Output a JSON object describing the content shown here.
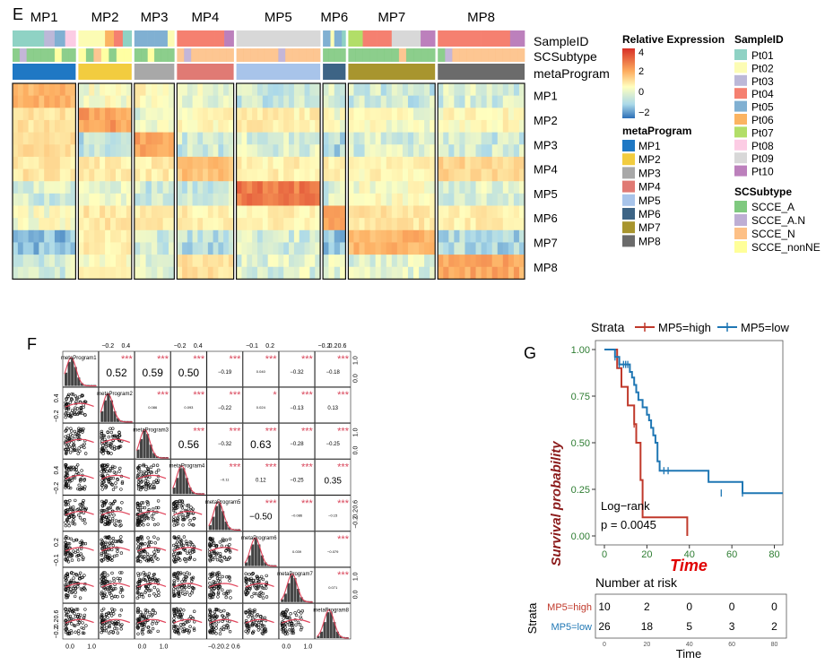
{
  "panels": {
    "e": {
      "letter": "E",
      "programs": [
        "MP1",
        "MP2",
        "MP3",
        "MP4",
        "MP5",
        "MP6",
        "MP7",
        "MP8"
      ],
      "annotation_labels": [
        "SampleID",
        "SCSubtype",
        "metaProgram"
      ],
      "legend_expr": {
        "title": "Relative Expression",
        "ticks": [
          "4",
          "2",
          "0",
          "−2"
        ]
      },
      "legend_meta": {
        "title": "metaProgram",
        "items": [
          {
            "label": "MP1",
            "color": "#1f78c4"
          },
          {
            "label": "MP2",
            "color": "#f2cc3f"
          },
          {
            "label": "MP3",
            "color": "#a8a8a8"
          },
          {
            "label": "MP4",
            "color": "#e07a74"
          },
          {
            "label": "MP5",
            "color": "#a8c4ea"
          },
          {
            "label": "MP6",
            "color": "#3d6485"
          },
          {
            "label": "MP7",
            "color": "#a8952e"
          },
          {
            "label": "MP8",
            "color": "#6b6b6b"
          }
        ]
      },
      "legend_sample": {
        "title": "SampleID",
        "items": [
          {
            "label": "Pt01",
            "color": "#8fd2c4"
          },
          {
            "label": "Pt02",
            "color": "#fcfcb4"
          },
          {
            "label": "Pt03",
            "color": "#bcb8d8"
          },
          {
            "label": "Pt04",
            "color": "#f58070"
          },
          {
            "label": "Pt05",
            "color": "#80b0d2"
          },
          {
            "label": "Pt06",
            "color": "#fbb462"
          },
          {
            "label": "Pt07",
            "color": "#b2de68"
          },
          {
            "label": "Pt08",
            "color": "#fcccE4"
          },
          {
            "label": "Pt09",
            "color": "#d8d8d8"
          },
          {
            "label": "Pt10",
            "color": "#bc80bc"
          }
        ]
      },
      "legend_subtype": {
        "title": "SCSubtype",
        "items": [
          {
            "label": "SCCE_A",
            "color": "#7fc97f"
          },
          {
            "label": "SCCE_A.N",
            "color": "#beaed4"
          },
          {
            "label": "SCCE_N",
            "color": "#fdc086"
          },
          {
            "label": "SCCE_nonNE",
            "color": "#ffff99"
          }
        ]
      }
    },
    "f": {
      "letter": "F",
      "vars": [
        "metaProgram1",
        "metaProgram2",
        "metaProgram3",
        "metaProgram4",
        "metaProgram5",
        "metaProgram6",
        "metaProgram7",
        "metaProgram8"
      ],
      "top_axis_ticks": {
        "c2": [
          "−0.2",
          "0.4"
        ],
        "c4": [
          "−0.2",
          "0.4"
        ],
        "c6": [
          "−0.1",
          "0.2"
        ],
        "c8": [
          "−0.2",
          "0.2",
          "0.6"
        ]
      },
      "bottom_axis_ticks": {
        "c1": [
          "0.0",
          "1.0"
        ],
        "c3": [
          "0.0",
          "1.0"
        ],
        "c5": [
          "−0.2",
          "0.2",
          "0.6"
        ],
        "c7": [
          "0.0",
          "1.0"
        ]
      },
      "left_axis_ticks": {
        "r2": [
          "0.4",
          "−0.2"
        ],
        "r4": [
          "0.4",
          "−0.2"
        ],
        "r6": [
          "0.2",
          "−0.1"
        ],
        "r8": [
          "0.6",
          "0.2",
          "−0.2"
        ]
      },
      "right_axis_ticks": {
        "r1": [
          "1.0",
          "0.0"
        ],
        "r3": [
          "1.0",
          "0.0"
        ],
        "r5": [
          "0.6",
          "0.2",
          "−0.2"
        ],
        "r7": [
          "1.0",
          "0.0"
        ]
      },
      "correlations": [
        {
          "r": 1,
          "c": 2,
          "value": "0.52",
          "stars": "***",
          "size": "big"
        },
        {
          "r": 1,
          "c": 3,
          "value": "0.59",
          "stars": "***",
          "size": "big"
        },
        {
          "r": 1,
          "c": 4,
          "value": "0.50",
          "stars": "***",
          "size": "big"
        },
        {
          "r": 1,
          "c": 5,
          "value": "−0.19",
          "stars": "***",
          "size": "small"
        },
        {
          "r": 1,
          "c": 6,
          "value": "0.040",
          "stars": "***",
          "size": "tiny"
        },
        {
          "r": 1,
          "c": 7,
          "value": "−0.32",
          "stars": "***",
          "size": "small"
        },
        {
          "r": 1,
          "c": 8,
          "value": "−0.18",
          "stars": "***",
          "size": "small"
        },
        {
          "r": 2,
          "c": 3,
          "value": "0.086",
          "stars": "***",
          "size": "tiny"
        },
        {
          "r": 2,
          "c": 4,
          "value": "0.093",
          "stars": "***",
          "size": "tiny"
        },
        {
          "r": 2,
          "c": 5,
          "value": "−0.22",
          "stars": "***",
          "size": "small"
        },
        {
          "r": 2,
          "c": 6,
          "value": "0.024",
          "stars": "*",
          "size": "tiny"
        },
        {
          "r": 2,
          "c": 7,
          "value": "−0.13",
          "stars": "***",
          "size": "small"
        },
        {
          "r": 2,
          "c": 8,
          "value": "0.13",
          "stars": "***",
          "size": "small"
        },
        {
          "r": 3,
          "c": 4,
          "value": "0.56",
          "stars": "***",
          "size": "big"
        },
        {
          "r": 3,
          "c": 5,
          "value": "−0.32",
          "stars": "***",
          "size": "small"
        },
        {
          "r": 3,
          "c": 6,
          "value": "0.63",
          "stars": "***",
          "size": "big"
        },
        {
          "r": 3,
          "c": 7,
          "value": "−0.28",
          "stars": "***",
          "size": "small"
        },
        {
          "r": 3,
          "c": 8,
          "value": "−0.25",
          "stars": "***",
          "size": "small"
        },
        {
          "r": 4,
          "c": 5,
          "value": "−0.11",
          "stars": "***",
          "size": "tiny"
        },
        {
          "r": 4,
          "c": 6,
          "value": "0.12",
          "stars": "***",
          "size": "small"
        },
        {
          "r": 4,
          "c": 7,
          "value": "−0.25",
          "stars": "***",
          "size": "small"
        },
        {
          "r": 4,
          "c": 8,
          "value": "0.35",
          "stars": "***",
          "size": "mid"
        },
        {
          "r": 5,
          "c": 6,
          "value": "−0.50",
          "stars": "***",
          "size": "mid"
        },
        {
          "r": 5,
          "c": 7,
          "value": "−0.086",
          "stars": "***",
          "size": "tiny"
        },
        {
          "r": 5,
          "c": 8,
          "value": "−0.15",
          "stars": "***",
          "size": "tiny"
        },
        {
          "r": 6,
          "c": 7,
          "value": "0.039",
          "stars": "",
          "size": "tiny"
        },
        {
          "r": 6,
          "c": 8,
          "value": "−0.079",
          "stars": "***",
          "size": "tiny"
        },
        {
          "r": 7,
          "c": 8,
          "value": "0.071",
          "stars": "***",
          "size": "tiny"
        }
      ]
    },
    "g": {
      "letter": "G",
      "legend_title": "Strata",
      "legend_high": "MP5=high",
      "legend_low": "MP5=low",
      "ylabel": "Survival probability",
      "xlabel": "Time",
      "yticks": [
        "1.00",
        "0.75",
        "0.50",
        "0.25",
        "0.00"
      ],
      "xticks": [
        "0",
        "20",
        "40",
        "60",
        "80"
      ],
      "logrank": "Log−rank",
      "pvalue": "p = 0.0045",
      "risk_title": "Number at risk",
      "risk_strata_label": "Strata",
      "risk_rows": [
        {
          "label": "MP5=high",
          "values": [
            "10",
            "2",
            "0",
            "0",
            "0"
          ]
        },
        {
          "label": "MP5=low",
          "values": [
            "26",
            "18",
            "5",
            "3",
            "2"
          ]
        }
      ],
      "risk_xticks": [
        "0",
        "20",
        "40",
        "60",
        "80"
      ],
      "risk_xlabel": "Time",
      "colors": {
        "high": "#c0392b",
        "low": "#1f77b4"
      }
    }
  },
  "chart_data": [
    {
      "type": "heatmap",
      "title": "",
      "rows": [
        "MP1",
        "MP2",
        "MP3",
        "MP4",
        "MP5",
        "MP6",
        "MP7",
        "MP8"
      ],
      "columns": [
        "MP1",
        "MP2",
        "MP3",
        "MP4",
        "MP5",
        "MP6",
        "MP7",
        "MP8"
      ],
      "column_cell_fraction": [
        0.128,
        0.108,
        0.081,
        0.115,
        0.17,
        0.046,
        0.176,
        0.176
      ],
      "values": [
        [
          1.8,
          0.0,
          0.2,
          -0.2,
          -0.6,
          -0.4,
          -0.6,
          -0.5
        ],
        [
          0.7,
          2.2,
          -0.3,
          0.2,
          0.4,
          0.0,
          0.0,
          0.2
        ],
        [
          0.8,
          -0.8,
          2.2,
          -0.6,
          -0.4,
          -0.9,
          -0.5,
          -0.6
        ],
        [
          0.6,
          0.4,
          0.5,
          1.5,
          0.4,
          0.4,
          0.3,
          1.0
        ],
        [
          -0.5,
          -0.3,
          -0.6,
          -0.6,
          2.8,
          -0.5,
          0.0,
          -0.4
        ],
        [
          0.0,
          0.6,
          0.4,
          0.4,
          0.4,
          2.1,
          0.6,
          0.4
        ],
        [
          -1.3,
          0.4,
          -0.5,
          -0.8,
          -0.5,
          -1.2,
          1.8,
          -0.9
        ],
        [
          -0.5,
          0.1,
          -0.4,
          0.7,
          -0.4,
          -0.3,
          -0.4,
          2.0
        ]
      ],
      "zlim": [
        -2,
        4
      ]
    },
    {
      "type": "line",
      "title": "",
      "xlabel": "Time",
      "ylabel": "Survival probability",
      "xlim": [
        0,
        84
      ],
      "ylim": [
        0,
        1
      ],
      "series": [
        {
          "name": "MP5=high",
          "x": [
            0,
            5,
            6,
            7,
            8,
            9,
            11,
            13,
            14,
            15,
            17,
            18,
            38,
            39
          ],
          "y": [
            1.0,
            1.0,
            0.9,
            0.9,
            0.8,
            0.8,
            0.7,
            0.7,
            0.6,
            0.5,
            0.3,
            0.1,
            0.1,
            0.0
          ],
          "censor_x": [
            14
          ],
          "censor_y": [
            0.6
          ]
        },
        {
          "name": "MP5=low",
          "x": [
            0,
            4,
            5,
            7,
            9,
            11,
            12,
            13,
            14,
            15,
            16,
            18,
            20,
            21,
            22,
            23,
            24,
            25,
            26,
            27,
            30,
            38,
            49,
            65,
            84
          ],
          "y": [
            1.0,
            1.0,
            0.96,
            0.92,
            0.92,
            0.92,
            0.88,
            0.85,
            0.81,
            0.77,
            0.73,
            0.69,
            0.65,
            0.62,
            0.58,
            0.54,
            0.5,
            0.4,
            0.35,
            0.35,
            0.35,
            0.35,
            0.29,
            0.23,
            0.23
          ],
          "censor_x": [
            5,
            7,
            9,
            10,
            11,
            28,
            30,
            55,
            65
          ],
          "censor_y": [
            0.96,
            0.92,
            0.92,
            0.92,
            0.92,
            0.35,
            0.35,
            0.23,
            0.23
          ]
        }
      ]
    }
  ]
}
